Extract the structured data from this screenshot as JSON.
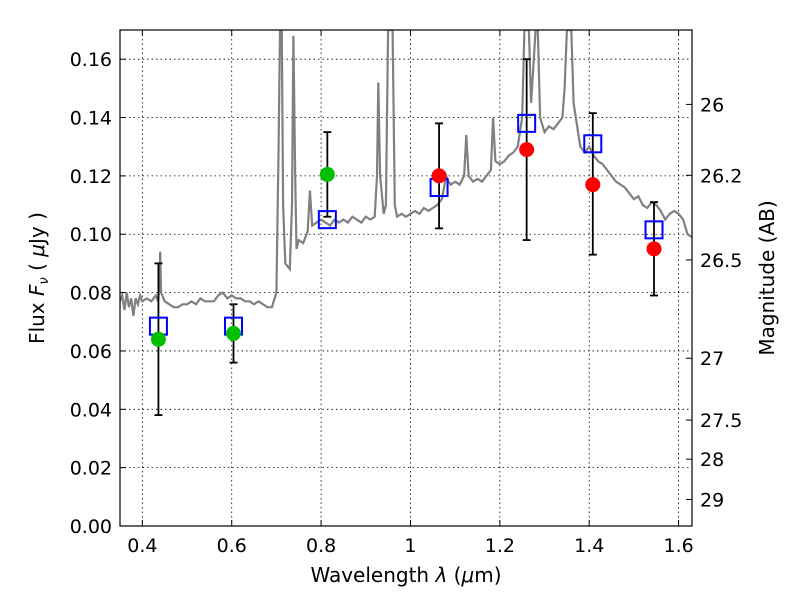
{
  "chart_data": {
    "type": "scatter",
    "title": "",
    "xlabel": {
      "prefix": "Wavelength ",
      "symbol": "λ",
      "unit_open": " (",
      "unit_mu": "μ",
      "unit_rest": "m)"
    },
    "ylabel": {
      "prefix": "Flux ",
      "symbol": "F",
      "subscript": "ν",
      "unit_open": " ( ",
      "unit_mu": "μ",
      "unit_rest": "Jy )"
    },
    "y2label": "Magnitude (AB)",
    "xlim": [
      0.35,
      1.63
    ],
    "ylim": [
      0.0,
      0.17
    ],
    "x_ticks": [
      0.4,
      0.6,
      0.8,
      1.0,
      1.2,
      1.4,
      1.6
    ],
    "x_tick_labels": [
      "0.4",
      "0.6",
      "0.8",
      "1",
      "1.2",
      "1.4",
      "1.6"
    ],
    "y_ticks": [
      0.0,
      0.02,
      0.04,
      0.06,
      0.08,
      0.1,
      0.12,
      0.14,
      0.16
    ],
    "y_tick_labels": [
      "0.00",
      "0.02",
      "0.04",
      "0.06",
      "0.08",
      "0.10",
      "0.12",
      "0.14",
      "0.16"
    ],
    "y2_ticks": [
      {
        "label": "26",
        "flux": 0.1445
      },
      {
        "label": "26.2",
        "flux": 0.1202
      },
      {
        "label": "26.5",
        "flux": 0.0912
      },
      {
        "label": "27",
        "flux": 0.0575
      },
      {
        "label": "27.5",
        "flux": 0.0363
      },
      {
        "label": "28",
        "flux": 0.0229
      },
      {
        "label": "29",
        "flux": 0.0091
      }
    ],
    "grid": true,
    "colors": {
      "model": "#808080",
      "model_fit": "#0000ff",
      "green": "#00c000",
      "red": "#ff0000",
      "errorbar": "#000000"
    },
    "series": [
      {
        "kind": "spectrum",
        "points": [
          [
            0.35,
            0.077
          ],
          [
            0.355,
            0.079
          ],
          [
            0.36,
            0.074
          ],
          [
            0.365,
            0.08
          ],
          [
            0.37,
            0.075
          ],
          [
            0.375,
            0.078
          ],
          [
            0.38,
            0.072
          ],
          [
            0.385,
            0.078
          ],
          [
            0.39,
            0.076
          ],
          [
            0.395,
            0.079
          ],
          [
            0.4,
            0.077
          ],
          [
            0.41,
            0.078
          ],
          [
            0.42,
            0.077
          ],
          [
            0.43,
            0.079
          ],
          [
            0.435,
            0.077
          ],
          [
            0.438,
            0.082
          ],
          [
            0.44,
            0.094
          ],
          [
            0.442,
            0.08
          ],
          [
            0.45,
            0.077
          ],
          [
            0.46,
            0.076
          ],
          [
            0.47,
            0.075
          ],
          [
            0.48,
            0.075
          ],
          [
            0.49,
            0.076
          ],
          [
            0.5,
            0.076
          ],
          [
            0.51,
            0.077
          ],
          [
            0.52,
            0.076
          ],
          [
            0.53,
            0.078
          ],
          [
            0.54,
            0.077
          ],
          [
            0.55,
            0.077
          ],
          [
            0.56,
            0.077
          ],
          [
            0.57,
            0.079
          ],
          [
            0.58,
            0.08
          ],
          [
            0.59,
            0.078
          ],
          [
            0.6,
            0.079
          ],
          [
            0.61,
            0.078
          ],
          [
            0.62,
            0.078
          ],
          [
            0.63,
            0.077
          ],
          [
            0.64,
            0.077
          ],
          [
            0.65,
            0.076
          ],
          [
            0.66,
            0.077
          ],
          [
            0.67,
            0.076
          ],
          [
            0.68,
            0.075
          ],
          [
            0.69,
            0.075
          ],
          [
            0.7,
            0.08
          ],
          [
            0.702,
            0.1
          ],
          [
            0.705,
            0.13
          ],
          [
            0.708,
            0.17
          ],
          [
            0.712,
            0.17
          ],
          [
            0.715,
            0.11
          ],
          [
            0.72,
            0.09
          ],
          [
            0.73,
            0.088
          ],
          [
            0.735,
            0.11
          ],
          [
            0.738,
            0.168
          ],
          [
            0.742,
            0.12
          ],
          [
            0.745,
            0.095
          ],
          [
            0.75,
            0.098
          ],
          [
            0.76,
            0.097
          ],
          [
            0.77,
            0.101
          ],
          [
            0.775,
            0.115
          ],
          [
            0.78,
            0.103
          ],
          [
            0.79,
            0.104
          ],
          [
            0.8,
            0.105
          ],
          [
            0.81,
            0.104
          ],
          [
            0.82,
            0.103
          ],
          [
            0.83,
            0.105
          ],
          [
            0.84,
            0.104
          ],
          [
            0.85,
            0.105
          ],
          [
            0.86,
            0.104
          ],
          [
            0.87,
            0.106
          ],
          [
            0.88,
            0.105
          ],
          [
            0.89,
            0.104
          ],
          [
            0.9,
            0.106
          ],
          [
            0.91,
            0.105
          ],
          [
            0.92,
            0.106
          ],
          [
            0.925,
            0.12
          ],
          [
            0.928,
            0.152
          ],
          [
            0.932,
            0.12
          ],
          [
            0.94,
            0.107
          ],
          [
            0.945,
            0.11
          ],
          [
            0.95,
            0.17
          ],
          [
            0.96,
            0.17
          ],
          [
            0.965,
            0.11
          ],
          [
            0.97,
            0.106
          ],
          [
            0.98,
            0.107
          ],
          [
            0.99,
            0.106
          ],
          [
            1.0,
            0.107
          ],
          [
            1.01,
            0.108
          ],
          [
            1.02,
            0.107
          ],
          [
            1.03,
            0.109
          ],
          [
            1.04,
            0.108
          ],
          [
            1.05,
            0.109
          ],
          [
            1.06,
            0.11
          ],
          [
            1.07,
            0.112
          ],
          [
            1.08,
            0.12
          ],
          [
            1.085,
            0.118
          ],
          [
            1.09,
            0.117
          ],
          [
            1.1,
            0.118
          ],
          [
            1.11,
            0.117
          ],
          [
            1.12,
            0.12
          ],
          [
            1.125,
            0.134
          ],
          [
            1.13,
            0.12
          ],
          [
            1.14,
            0.118
          ],
          [
            1.15,
            0.119
          ],
          [
            1.16,
            0.118
          ],
          [
            1.17,
            0.12
          ],
          [
            1.18,
            0.122
          ],
          [
            1.185,
            0.14
          ],
          [
            1.19,
            0.125
          ],
          [
            1.2,
            0.124
          ],
          [
            1.21,
            0.125
          ],
          [
            1.22,
            0.127
          ],
          [
            1.23,
            0.128
          ],
          [
            1.24,
            0.13
          ],
          [
            1.25,
            0.14
          ],
          [
            1.255,
            0.17
          ],
          [
            1.265,
            0.17
          ],
          [
            1.27,
            0.145
          ],
          [
            1.28,
            0.17
          ],
          [
            1.285,
            0.17
          ],
          [
            1.29,
            0.14
          ],
          [
            1.3,
            0.135
          ],
          [
            1.31,
            0.137
          ],
          [
            1.32,
            0.136
          ],
          [
            1.33,
            0.138
          ],
          [
            1.34,
            0.14
          ],
          [
            1.345,
            0.15
          ],
          [
            1.35,
            0.17
          ],
          [
            1.36,
            0.17
          ],
          [
            1.365,
            0.145
          ],
          [
            1.37,
            0.14
          ],
          [
            1.38,
            0.13
          ],
          [
            1.39,
            0.128
          ],
          [
            1.4,
            0.13
          ],
          [
            1.41,
            0.127
          ],
          [
            1.42,
            0.125
          ],
          [
            1.43,
            0.124
          ],
          [
            1.44,
            0.122
          ],
          [
            1.45,
            0.12
          ],
          [
            1.46,
            0.118
          ],
          [
            1.47,
            0.117
          ],
          [
            1.48,
            0.116
          ],
          [
            1.49,
            0.114
          ],
          [
            1.5,
            0.112
          ],
          [
            1.51,
            0.113
          ],
          [
            1.52,
            0.11
          ],
          [
            1.53,
            0.109
          ],
          [
            1.54,
            0.111
          ],
          [
            1.55,
            0.11
          ],
          [
            1.56,
            0.108
          ],
          [
            1.57,
            0.105
          ],
          [
            1.58,
            0.107
          ],
          [
            1.59,
            0.108
          ],
          [
            1.6,
            0.107
          ],
          [
            1.61,
            0.105
          ],
          [
            1.62,
            0.1
          ],
          [
            1.63,
            0.099
          ]
        ]
      },
      {
        "kind": "model_photometry",
        "points": [
          [
            0.436,
            0.0685
          ],
          [
            0.604,
            0.0685
          ],
          [
            0.814,
            0.105
          ],
          [
            1.064,
            0.116
          ],
          [
            1.26,
            0.138
          ],
          [
            1.408,
            0.131
          ],
          [
            1.545,
            0.1015
          ]
        ]
      },
      {
        "kind": "observed_green",
        "points": [
          {
            "x": 0.436,
            "y": 0.064,
            "err_low": 0.038,
            "err_high": 0.09
          },
          {
            "x": 0.604,
            "y": 0.066,
            "err_low": 0.056,
            "err_high": 0.076
          },
          {
            "x": 0.814,
            "y": 0.1205,
            "err_low": 0.106,
            "err_high": 0.135
          }
        ]
      },
      {
        "kind": "observed_red",
        "points": [
          {
            "x": 1.064,
            "y": 0.12,
            "err_low": 0.102,
            "err_high": 0.138
          },
          {
            "x": 1.26,
            "y": 0.129,
            "err_low": 0.098,
            "err_high": 0.16
          },
          {
            "x": 1.408,
            "y": 0.117,
            "err_low": 0.093,
            "err_high": 0.1415
          },
          {
            "x": 1.545,
            "y": 0.095,
            "err_low": 0.079,
            "err_high": 0.111
          }
        ]
      }
    ]
  }
}
